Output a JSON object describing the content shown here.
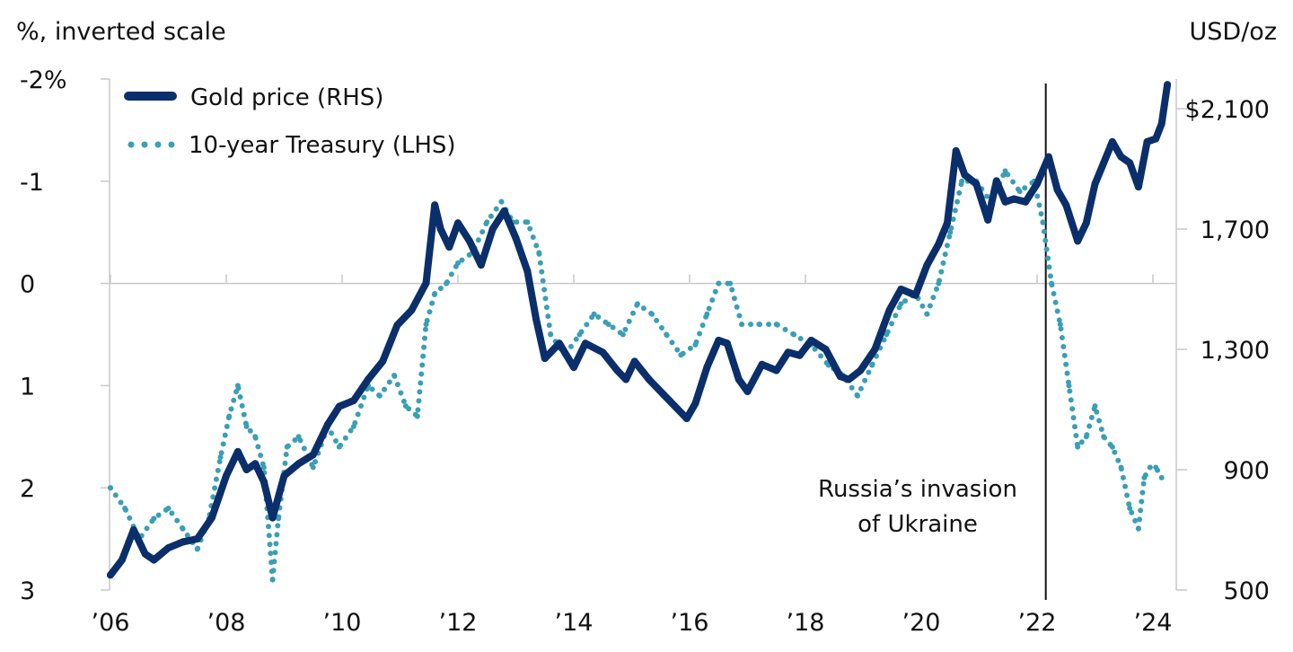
{
  "chart_data": {
    "type": "line",
    "left_axis_label": "%, inverted scale",
    "right_axis_label": "USD/oz",
    "left_axis": {
      "ticks": [
        -2,
        -1,
        0,
        1,
        2,
        3
      ],
      "tick_labels": [
        "-2%",
        "-1",
        "0",
        "1",
        "2",
        "3"
      ],
      "range": [
        -2,
        3
      ],
      "inverted": true
    },
    "right_axis": {
      "ticks": [
        2100,
        1700,
        1300,
        900,
        500
      ],
      "tick_labels": [
        "$2,100",
        "1,700",
        "1,300",
        "900",
        "500"
      ],
      "range": [
        500,
        2200
      ]
    },
    "x_axis": {
      "ticks": [
        2006,
        2008,
        2010,
        2012,
        2014,
        2016,
        2018,
        2020,
        2022,
        2024
      ],
      "tick_labels": [
        "’06",
        "’08",
        "’10",
        "’12",
        "’14",
        "’16",
        "’18",
        "’20",
        "’22",
        "’24"
      ],
      "range": [
        2006,
        2024.3
      ]
    },
    "legend": {
      "placement": "top-left",
      "entries": [
        "Gold price (RHS)",
        "10-year Treasury (LHS)"
      ]
    },
    "annotation": {
      "text_line1": "Russia’s invasion",
      "text_line2": "of Ukraine",
      "x": 2022.15
    },
    "series": [
      {
        "name": "Gold price (RHS)",
        "axis": "right",
        "color": "#0b2f6b",
        "style": "solid",
        "x": [
          2006.0,
          2006.2,
          2006.4,
          2006.6,
          2006.75,
          2007.0,
          2007.25,
          2007.5,
          2007.75,
          2008.0,
          2008.2,
          2008.35,
          2008.5,
          2008.65,
          2008.8,
          2009.0,
          2009.25,
          2009.5,
          2009.75,
          2009.95,
          2010.2,
          2010.45,
          2010.7,
          2010.95,
          2011.2,
          2011.45,
          2011.6,
          2011.7,
          2011.85,
          2012.0,
          2012.2,
          2012.4,
          2012.6,
          2012.8,
          2013.0,
          2013.2,
          2013.35,
          2013.5,
          2013.75,
          2014.0,
          2014.2,
          2014.5,
          2014.75,
          2014.9,
          2015.05,
          2015.3,
          2015.55,
          2015.75,
          2015.95,
          2016.1,
          2016.3,
          2016.5,
          2016.65,
          2016.85,
          2017.0,
          2017.25,
          2017.5,
          2017.7,
          2017.9,
          2018.1,
          2018.35,
          2018.6,
          2018.75,
          2018.95,
          2019.2,
          2019.45,
          2019.65,
          2019.9,
          2020.1,
          2020.3,
          2020.45,
          2020.6,
          2020.75,
          2020.95,
          2021.15,
          2021.3,
          2021.45,
          2021.6,
          2021.8,
          2022.0,
          2022.2,
          2022.35,
          2022.5,
          2022.7,
          2022.85,
          2023.0,
          2023.15,
          2023.3,
          2023.45,
          2023.6,
          2023.75,
          2023.9,
          2024.05,
          2024.15,
          2024.25
        ],
        "y": [
          550,
          600,
          700,
          620,
          600,
          640,
          660,
          670,
          740,
          880,
          960,
          900,
          920,
          860,
          740,
          880,
          920,
          950,
          1050,
          1110,
          1130,
          1200,
          1260,
          1380,
          1430,
          1520,
          1780,
          1700,
          1640,
          1720,
          1660,
          1580,
          1700,
          1760,
          1670,
          1560,
          1400,
          1270,
          1320,
          1240,
          1320,
          1290,
          1230,
          1200,
          1260,
          1200,
          1150,
          1110,
          1070,
          1120,
          1240,
          1330,
          1320,
          1200,
          1160,
          1250,
          1230,
          1290,
          1280,
          1330,
          1300,
          1210,
          1200,
          1230,
          1300,
          1430,
          1500,
          1480,
          1580,
          1650,
          1720,
          1960,
          1880,
          1850,
          1730,
          1860,
          1790,
          1800,
          1790,
          1850,
          1940,
          1830,
          1780,
          1660,
          1720,
          1850,
          1920,
          1990,
          1940,
          1920,
          1840,
          1990,
          2000,
          2050,
          2180
        ]
      },
      {
        "name": "10-year Treasury (LHS)",
        "axis": "left",
        "color": "#3a9fb5",
        "style": "dotted",
        "x": [
          2006.0,
          2006.25,
          2006.5,
          2006.75,
          2007.0,
          2007.25,
          2007.5,
          2007.7,
          2007.9,
          2008.05,
          2008.2,
          2008.35,
          2008.5,
          2008.65,
          2008.8,
          2008.9,
          2009.05,
          2009.25,
          2009.5,
          2009.75,
          2009.95,
          2010.2,
          2010.45,
          2010.65,
          2010.9,
          2011.1,
          2011.3,
          2011.45,
          2011.6,
          2011.8,
          2012.0,
          2012.25,
          2012.5,
          2012.75,
          2012.95,
          2013.2,
          2013.4,
          2013.6,
          2013.85,
          2014.1,
          2014.35,
          2014.6,
          2014.85,
          2015.1,
          2015.35,
          2015.6,
          2015.85,
          2016.1,
          2016.3,
          2016.5,
          2016.7,
          2016.9,
          2017.2,
          2017.5,
          2017.8,
          2018.1,
          2018.4,
          2018.65,
          2018.9,
          2019.15,
          2019.4,
          2019.65,
          2019.9,
          2020.1,
          2020.3,
          2020.5,
          2020.7,
          2020.95,
          2021.2,
          2021.45,
          2021.7,
          2021.95,
          2022.1,
          2022.25,
          2022.4,
          2022.55,
          2022.7,
          2022.85,
          2023.0,
          2023.15,
          2023.3,
          2023.45,
          2023.6,
          2023.75,
          2023.85,
          2023.95,
          2024.05,
          2024.15
        ],
        "y": [
          2.0,
          2.2,
          2.5,
          2.3,
          2.2,
          2.4,
          2.6,
          2.3,
          1.7,
          1.3,
          1.0,
          1.4,
          1.5,
          1.8,
          2.9,
          2.3,
          1.6,
          1.5,
          1.8,
          1.4,
          1.6,
          1.4,
          1.0,
          1.1,
          0.9,
          1.2,
          1.3,
          0.4,
          0.1,
          0.0,
          -0.2,
          -0.3,
          -0.6,
          -0.8,
          -0.6,
          -0.6,
          -0.3,
          0.5,
          0.7,
          0.5,
          0.3,
          0.4,
          0.5,
          0.2,
          0.3,
          0.5,
          0.7,
          0.6,
          0.3,
          0.0,
          0.0,
          0.4,
          0.4,
          0.4,
          0.5,
          0.6,
          0.8,
          0.9,
          1.1,
          0.8,
          0.5,
          0.2,
          0.1,
          0.3,
          0.0,
          -0.5,
          -1.0,
          -1.0,
          -0.8,
          -1.1,
          -0.9,
          -1.0,
          -0.6,
          0.0,
          0.4,
          1.0,
          1.6,
          1.5,
          1.2,
          1.5,
          1.6,
          1.8,
          2.2,
          2.4,
          1.9,
          1.8,
          1.8,
          1.9
        ]
      }
    ]
  }
}
